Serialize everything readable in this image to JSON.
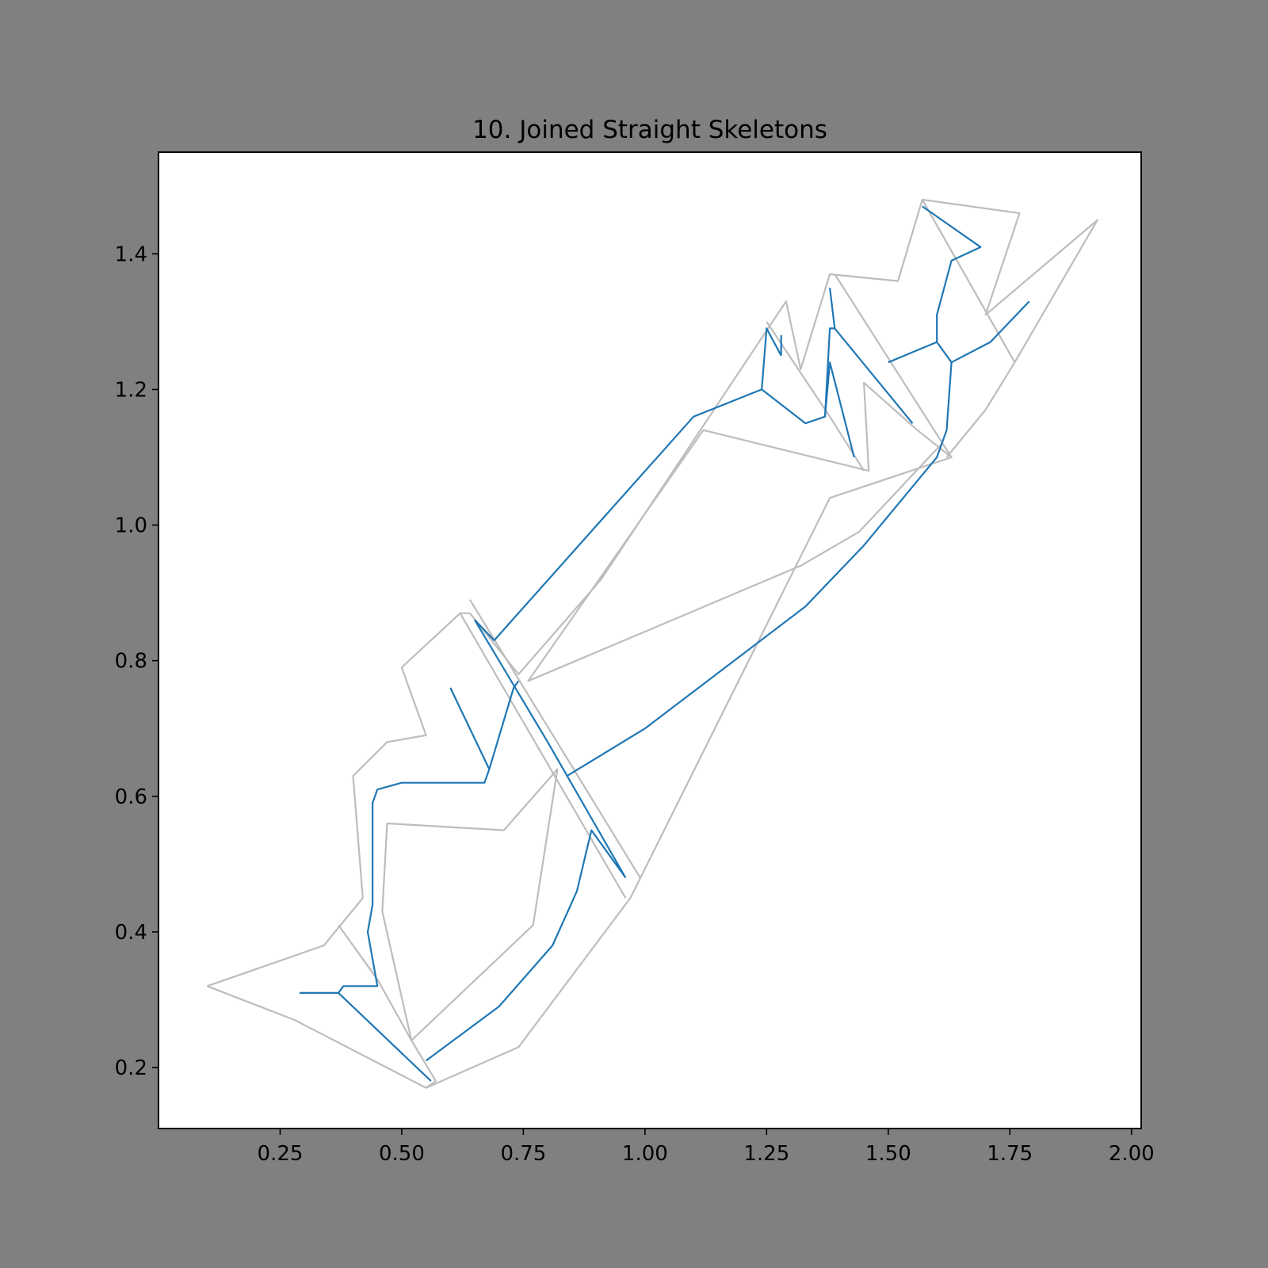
{
  "chart_data": {
    "type": "line",
    "title": "10. Joined Straight Skeletons",
    "xlabel": "",
    "ylabel": "",
    "xlim": [
      0.0,
      2.02
    ],
    "ylim": [
      0.11,
      1.55
    ],
    "grid": false,
    "x_ticks": [
      "0.25",
      "0.50",
      "0.75",
      "1.00",
      "1.25",
      "1.50",
      "1.75",
      "2.00"
    ],
    "y_ticks": [
      "0.2",
      "0.4",
      "0.6",
      "0.8",
      "1.0",
      "1.2",
      "1.4"
    ],
    "colors": {
      "outline": "#bdbdbd",
      "skeleton": "#1f77b4",
      "background": "#808080",
      "plot_background": "#ffffff"
    },
    "series": [
      {
        "role": "outline",
        "color": "#bdbdbd",
        "lines": [
          [
            [
              0.1,
              0.32
            ],
            [
              0.28,
              0.27
            ],
            [
              0.55,
              0.17
            ],
            [
              0.74,
              0.23
            ],
            [
              0.97,
              0.45
            ],
            [
              1.38,
              1.04
            ],
            [
              1.63,
              1.1
            ],
            [
              1.56,
              1.14
            ],
            [
              1.45,
              1.21
            ],
            [
              1.46,
              1.08
            ],
            [
              1.12,
              1.14
            ],
            [
              0.76,
              0.77
            ],
            [
              1.32,
              0.94
            ],
            [
              1.44,
              0.99
            ],
            [
              1.61,
              1.12
            ]
          ],
          [
            [
              0.1,
              0.32
            ],
            [
              0.34,
              0.38
            ],
            [
              0.42,
              0.45
            ],
            [
              0.4,
              0.63
            ],
            [
              0.47,
              0.68
            ],
            [
              0.55,
              0.69
            ],
            [
              0.5,
              0.79
            ],
            [
              0.62,
              0.87
            ],
            [
              0.64,
              0.87
            ],
            [
              0.74,
              0.78
            ],
            [
              0.91,
              0.92
            ],
            [
              1.29,
              1.33
            ],
            [
              1.32,
              1.23
            ],
            [
              1.38,
              1.37
            ],
            [
              1.52,
              1.36
            ],
            [
              1.57,
              1.48
            ],
            [
              1.77,
              1.46
            ],
            [
              1.7,
              1.31
            ],
            [
              1.93,
              1.45
            ],
            [
              1.76,
              1.24
            ],
            [
              1.7,
              1.17
            ],
            [
              1.62,
              1.1
            ]
          ],
          [
            [
              0.37,
              0.41
            ],
            [
              0.45,
              0.33
            ],
            [
              0.52,
              0.24
            ],
            [
              0.57,
              0.18
            ],
            [
              0.55,
              0.17
            ]
          ],
          [
            [
              0.52,
              0.24
            ],
            [
              0.77,
              0.41
            ],
            [
              0.82,
              0.64
            ],
            [
              0.71,
              0.55
            ],
            [
              0.47,
              0.56
            ],
            [
              0.46,
              0.43
            ],
            [
              0.52,
              0.24
            ]
          ],
          [
            [
              0.62,
              0.87
            ],
            [
              0.96,
              0.45
            ]
          ],
          [
            [
              0.64,
              0.89
            ],
            [
              0.99,
              0.48
            ]
          ],
          [
            [
              1.25,
              1.3
            ],
            [
              1.38,
              1.16
            ],
            [
              1.45,
              1.08
            ]
          ],
          [
            [
              1.39,
              1.37
            ],
            [
              1.63,
              1.1
            ]
          ],
          [
            [
              1.57,
              1.48
            ],
            [
              1.76,
              1.24
            ]
          ]
        ]
      },
      {
        "role": "skeleton",
        "color": "#1f77b4",
        "lines": [
          [
            [
              0.29,
              0.31
            ],
            [
              0.37,
              0.31
            ],
            [
              0.56,
              0.18
            ]
          ],
          [
            [
              0.37,
              0.31
            ],
            [
              0.38,
              0.32
            ],
            [
              0.45,
              0.32
            ],
            [
              0.43,
              0.4
            ],
            [
              0.44,
              0.44
            ],
            [
              0.44,
              0.59
            ],
            [
              0.45,
              0.61
            ],
            [
              0.5,
              0.62
            ],
            [
              0.67,
              0.62
            ],
            [
              0.68,
              0.64
            ],
            [
              0.73,
              0.76
            ],
            [
              0.74,
              0.77
            ]
          ],
          [
            [
              0.6,
              0.76
            ],
            [
              0.68,
              0.64
            ]
          ],
          [
            [
              0.65,
              0.86
            ],
            [
              0.8,
              0.68
            ],
            [
              0.96,
              0.48
            ]
          ],
          [
            [
              0.65,
              0.86
            ],
            [
              0.69,
              0.83
            ],
            [
              1.1,
              1.16
            ],
            [
              1.24,
              1.2
            ],
            [
              1.25,
              1.29
            ],
            [
              1.28,
              1.25
            ]
          ],
          [
            [
              1.28,
              1.28
            ],
            [
              1.28,
              1.25
            ]
          ],
          [
            [
              1.24,
              1.2
            ],
            [
              1.33,
              1.15
            ],
            [
              1.37,
              1.16
            ],
            [
              1.38,
              1.24
            ],
            [
              1.43,
              1.1
            ]
          ],
          [
            [
              1.37,
              1.16
            ],
            [
              1.38,
              1.29
            ],
            [
              1.39,
              1.29
            ],
            [
              1.55,
              1.15
            ]
          ],
          [
            [
              1.38,
              1.35
            ],
            [
              1.39,
              1.29
            ]
          ],
          [
            [
              0.55,
              0.21
            ],
            [
              0.7,
              0.29
            ],
            [
              0.81,
              0.38
            ],
            [
              0.86,
              0.46
            ],
            [
              0.89,
              0.55
            ],
            [
              0.96,
              0.48
            ]
          ],
          [
            [
              0.84,
              0.63
            ],
            [
              1.0,
              0.7
            ],
            [
              1.33,
              0.88
            ],
            [
              1.45,
              0.97
            ],
            [
              1.6,
              1.1
            ],
            [
              1.62,
              1.14
            ],
            [
              1.63,
              1.24
            ],
            [
              1.71,
              1.27
            ],
            [
              1.79,
              1.33
            ]
          ],
          [
            [
              1.63,
              1.24
            ],
            [
              1.6,
              1.27
            ],
            [
              1.6,
              1.31
            ],
            [
              1.63,
              1.39
            ],
            [
              1.69,
              1.41
            ],
            [
              1.57,
              1.47
            ]
          ],
          [
            [
              1.5,
              1.24
            ],
            [
              1.6,
              1.27
            ]
          ]
        ]
      }
    ]
  }
}
